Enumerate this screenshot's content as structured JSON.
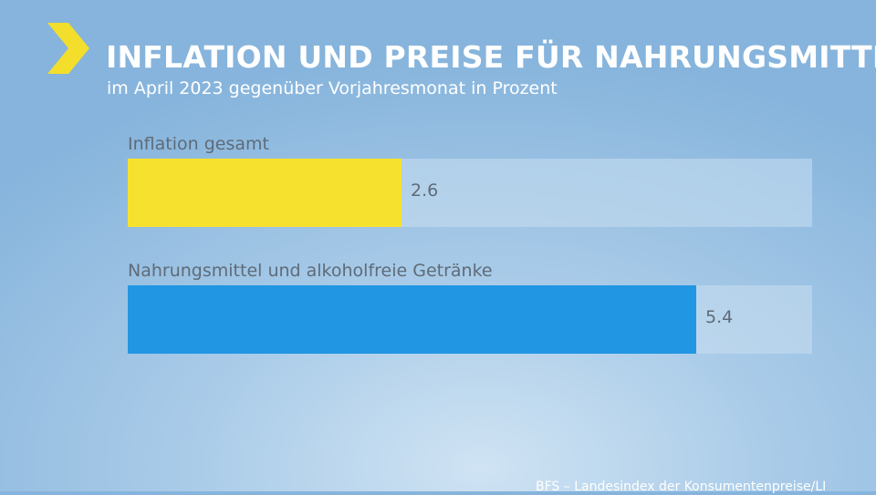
{
  "header": {
    "title": "INFLATION UND PREISE FÜR NAHRUNGSMITTEL",
    "subtitle": "im April 2023 gegenüber Vorjahresmonat in Prozent"
  },
  "source": "BFS – Landesindex der Konsumentenpreise/LI",
  "colors": {
    "accent_chevron": "#f3de2c",
    "bar_inflation": "#f7e12f",
    "bar_food": "#2196e3"
  },
  "chart_data": {
    "type": "bar",
    "orientation": "horizontal",
    "categories": [
      "Inflation gesamt",
      "Nahrungsmittel und alkoholfreie Getränke"
    ],
    "values": [
      2.6,
      5.4
    ],
    "value_labels": [
      "2.6",
      "5.4"
    ],
    "title": "INFLATION UND PREISE FÜR NAHRUNGSMITTEL",
    "subtitle": "im April 2023 gegenüber Vorjahresmonat in Prozent",
    "xlim": [
      0,
      6.5
    ],
    "grid": false,
    "legend": "none"
  }
}
